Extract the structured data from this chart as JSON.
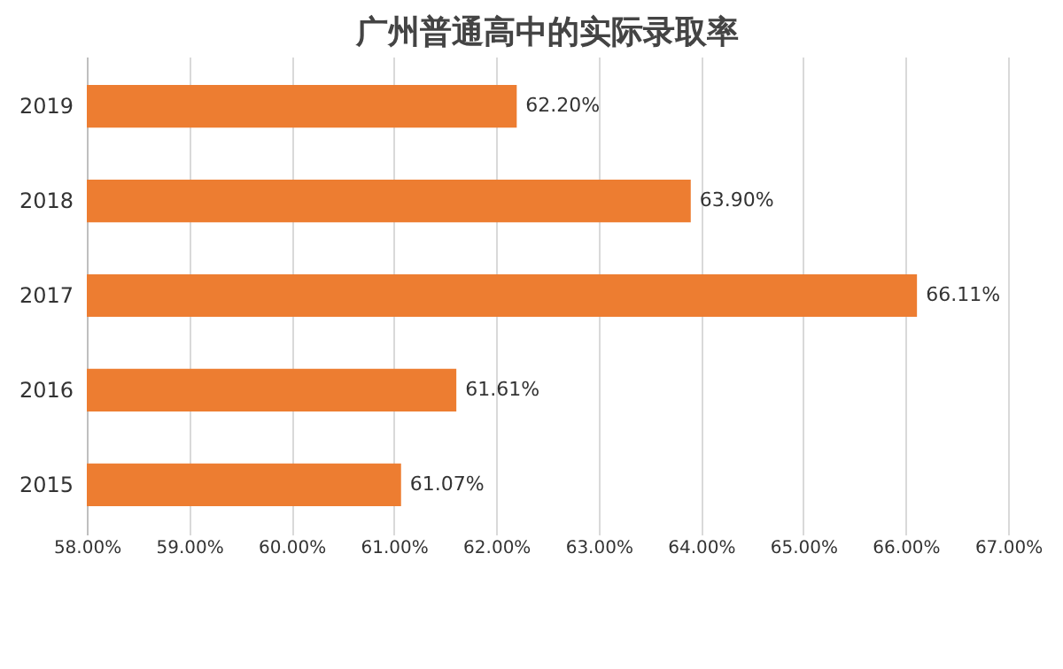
{
  "chart_data": {
    "type": "bar",
    "orientation": "horizontal",
    "title": "广州普通高中的实际录取率",
    "categories": [
      "2019",
      "2018",
      "2017",
      "2016",
      "2015"
    ],
    "values": [
      62.2,
      63.9,
      66.11,
      61.61,
      61.07
    ],
    "value_labels": [
      "62.20%",
      "63.90%",
      "66.11%",
      "61.61%",
      "61.07%"
    ],
    "color": "#ed7d31",
    "xlim": [
      58,
      67
    ],
    "xticks": [
      {
        "value": 58,
        "label": "58.00%"
      },
      {
        "value": 59,
        "label": "59.00%"
      },
      {
        "value": 60,
        "label": "60.00%"
      },
      {
        "value": 61,
        "label": "61.00%"
      },
      {
        "value": 62,
        "label": "62.00%"
      },
      {
        "value": 63,
        "label": "63.00%"
      },
      {
        "value": 64,
        "label": "64.00%"
      },
      {
        "value": 65,
        "label": "65.00%"
      },
      {
        "value": 66,
        "label": "66.00%"
      },
      {
        "value": 67,
        "label": "67.00%"
      }
    ],
    "grid": "x"
  }
}
